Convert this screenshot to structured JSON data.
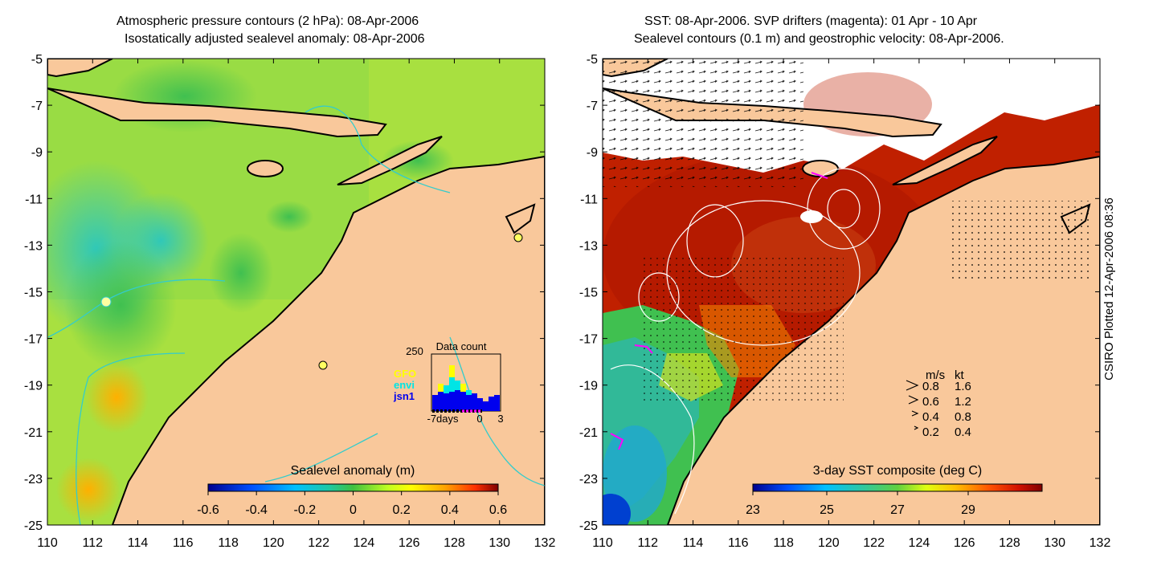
{
  "left_panel": {
    "title_line1": "Atmospheric pressure contours (2 hPa): 08-Apr-2006",
    "title_line2": "Isostatically adjusted sealevel anomaly: 08-Apr-2006",
    "colorbar_label": "Sealevel anomaly (m)",
    "colorbar_ticks": [
      "-0.6",
      "-0.4",
      "-0.2",
      "0",
      "0.2",
      "0.4",
      "0.6"
    ],
    "inset": {
      "title": "Data count",
      "ymax_label": "250",
      "xlabels": [
        "-7days",
        "0",
        "3"
      ],
      "legend": [
        {
          "name": "GFO",
          "color": "#ffff00"
        },
        {
          "name": "envi",
          "color": "#00e5e5"
        },
        {
          "name": "jsn1",
          "color": "#0000ee"
        }
      ]
    }
  },
  "right_panel": {
    "title_line1": "SST: 08-Apr-2006. SVP drifters (magenta): 01 Apr - 10 Apr",
    "title_line2": "Sealevel contours (0.1 m) and geostrophic velocity: 08-Apr-2006.",
    "colorbar_label": "3-day SST composite (deg C)",
    "colorbar_ticks": [
      "23",
      "25",
      "27",
      "29"
    ],
    "speed_legend": {
      "header_ms": "m/s",
      "header_kt": "kt",
      "rows": [
        {
          "ms": "0.8",
          "kt": "1.6"
        },
        {
          "ms": "0.6",
          "kt": "1.2"
        },
        {
          "ms": "0.4",
          "kt": "0.8"
        },
        {
          "ms": "0.2",
          "kt": "0.4"
        }
      ]
    }
  },
  "axes": {
    "x_ticks": [
      "110",
      "112",
      "114",
      "116",
      "118",
      "120",
      "122",
      "124",
      "126",
      "128",
      "130",
      "132"
    ],
    "y_ticks": [
      "-5",
      "-7",
      "-9",
      "-11",
      "-13",
      "-15",
      "-17",
      "-19",
      "-21",
      "-23",
      "-25"
    ]
  },
  "side_label": "CSIRO Plotted 12-Apr-2006 08:36",
  "colors": {
    "land": "#f9c89b",
    "cloud": "#ffffff",
    "contour_cyan": "#33cccc"
  }
}
